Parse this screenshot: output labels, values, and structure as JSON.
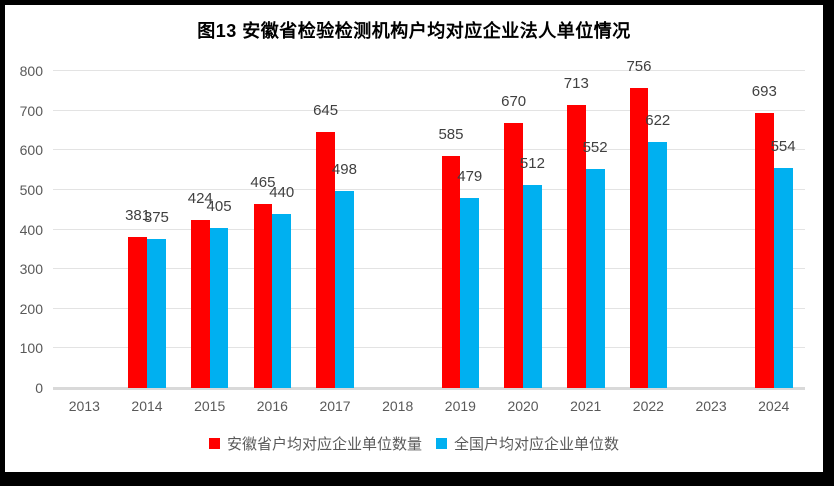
{
  "title": "图13 安徽省检验检测机构户均对应企业法人单位情况",
  "chart_data": {
    "type": "bar",
    "title": "图13 安徽省检验检测机构户均对应企业法人单位情况",
    "categories": [
      "2013",
      "2014",
      "2015",
      "2016",
      "2017",
      "2018",
      "2019",
      "2020",
      "2021",
      "2022",
      "2023",
      "2024"
    ],
    "series": [
      {
        "key": "anhui",
        "name": "安徽省户均对应企业单位数量",
        "color": "#FF0000",
        "values": [
          null,
          381,
          424,
          465,
          645,
          null,
          585,
          670,
          713,
          756,
          null,
          693
        ]
      },
      {
        "key": "national",
        "name": "全国户均对应企业单位数",
        "color": "#00B0F0",
        "values": [
          null,
          375,
          405,
          440,
          498,
          null,
          479,
          512,
          552,
          622,
          null,
          554
        ]
      }
    ],
    "ylim": [
      0,
      800
    ],
    "ytick_step": 100,
    "yticks": [
      0,
      100,
      200,
      300,
      400,
      500,
      600,
      700,
      800
    ],
    "grid": true,
    "legend_position": "bottom",
    "data_labels": true,
    "label_color": "#404040",
    "axis_tick_color": "#595959",
    "gridline_color": "#E3E3E3",
    "axis_line_color": "#D9D9D9",
    "frame_border_color": "#000000"
  }
}
